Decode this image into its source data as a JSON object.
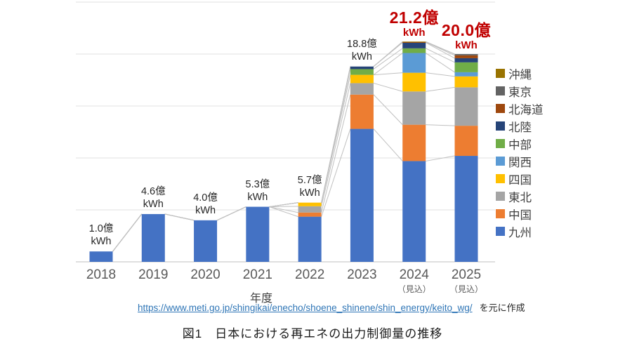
{
  "page": {
    "caption": "図1　日本における再エネの出力制御量の推移",
    "source": {
      "url_text": "https://www.meti.go.jp/shingikai/enecho/shoene_shinene/shin_energy/keito_wg/",
      "suffix": "を元に作成"
    }
  },
  "style": {
    "emphasis_red": "#C00000",
    "grid_color": "#E0E0E0",
    "axis_color": "#BFBFBF",
    "series_line_color": "#C0C0C0",
    "tick_color": "#595959",
    "link_color": "#2E75B6"
  },
  "chart_data": {
    "type": "bar",
    "stacked": true,
    "title": "",
    "xlabel": "年度",
    "ylabel": "",
    "unit": "億kWh",
    "ylim": [
      0,
      25
    ],
    "gridline_step": 5,
    "grid": true,
    "legend_position": "right",
    "legend_order": "reversed",
    "categories": [
      "2018",
      "2019",
      "2020",
      "2021",
      "2022",
      "2023",
      "2024",
      "2025"
    ],
    "category_notes": [
      "",
      "",
      "",
      "",
      "",
      "",
      "（見込）",
      "（見込）"
    ],
    "series": [
      {
        "name": "九州",
        "color": "#4472C4",
        "values": [
          1.0,
          4.6,
          4.0,
          5.3,
          4.35,
          12.8,
          9.7,
          10.2
        ]
      },
      {
        "name": "中国",
        "color": "#ED7D31",
        "values": [
          0,
          0,
          0,
          0,
          0.4,
          3.3,
          3.5,
          2.9
        ]
      },
      {
        "name": "東北",
        "color": "#A5A5A5",
        "values": [
          0,
          0,
          0,
          0,
          0.6,
          1.1,
          3.2,
          3.7
        ]
      },
      {
        "name": "四国",
        "color": "#FFC000",
        "values": [
          0,
          0,
          0,
          0,
          0.35,
          0.8,
          1.8,
          1.05
        ]
      },
      {
        "name": "関西",
        "color": "#5B9BD5",
        "values": [
          0,
          0,
          0,
          0,
          0,
          0,
          1.9,
          0.4
        ]
      },
      {
        "name": "中部",
        "color": "#70AD47",
        "values": [
          0,
          0,
          0,
          0,
          0,
          0.55,
          0.45,
          0.95
        ]
      },
      {
        "name": "北陸",
        "color": "#264478",
        "values": [
          0,
          0,
          0,
          0,
          0,
          0.25,
          0.55,
          0.4
        ]
      },
      {
        "name": "北海道",
        "color": "#9E480E",
        "values": [
          0,
          0,
          0,
          0,
          0,
          0,
          0.05,
          0.27
        ]
      },
      {
        "name": "東京",
        "color": "#636363",
        "values": [
          0,
          0,
          0,
          0,
          0,
          0,
          0,
          0.13
        ]
      },
      {
        "name": "沖縄",
        "color": "#997300",
        "values": [
          0,
          0,
          0,
          0,
          0,
          0,
          0.05,
          0
        ]
      }
    ],
    "totals": [
      1.0,
      4.6,
      4.0,
      5.3,
      5.7,
      18.8,
      21.2,
      20.0
    ],
    "total_labels": [
      {
        "text": "1.0億",
        "unit": "kWh",
        "emphasis": false
      },
      {
        "text": "4.6億",
        "unit": "kWh",
        "emphasis": false
      },
      {
        "text": "4.0億",
        "unit": "kWh",
        "emphasis": false
      },
      {
        "text": "5.3億",
        "unit": "kWh",
        "emphasis": false
      },
      {
        "text": "5.7億",
        "unit": "kWh",
        "emphasis": false
      },
      {
        "text": "18.8億",
        "unit": "kWh",
        "emphasis": false
      },
      {
        "text": "21.2億",
        "unit": "kWh",
        "emphasis": true
      },
      {
        "text": "20.0億",
        "unit": "kWh",
        "emphasis": true
      }
    ]
  }
}
